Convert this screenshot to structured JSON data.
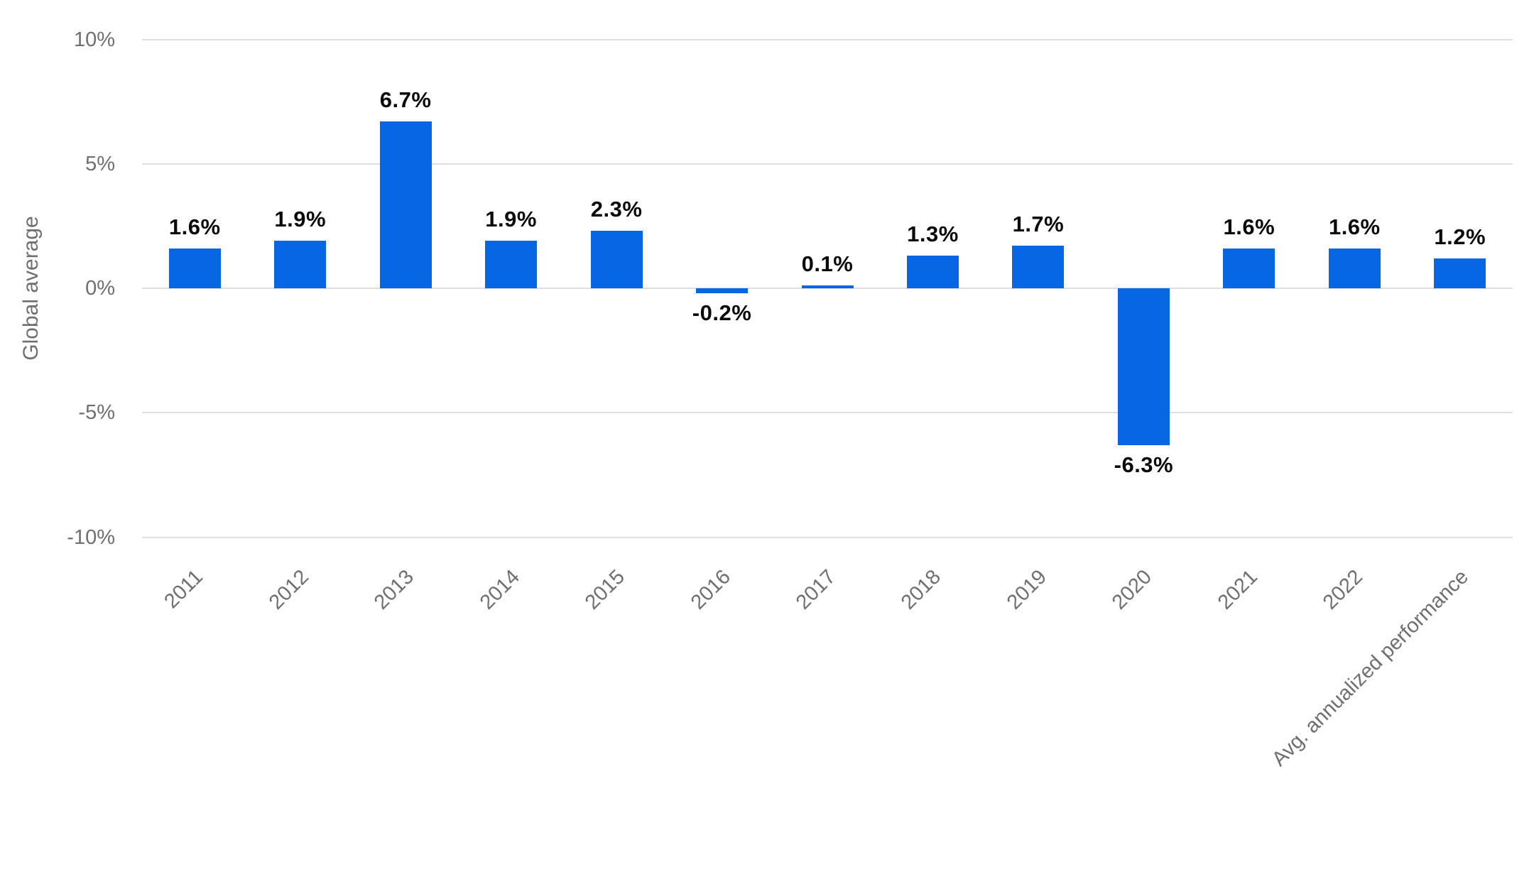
{
  "chart_data": {
    "type": "bar",
    "title": "",
    "xlabel": "",
    "ylabel": "Global average",
    "categories": [
      "2011",
      "2012",
      "2013",
      "2014",
      "2015",
      "2016",
      "2017",
      "2018",
      "2019",
      "2020",
      "2021",
      "2022",
      "Avg. annualized performance"
    ],
    "values": [
      1.6,
      1.9,
      6.7,
      1.9,
      2.3,
      -0.2,
      0.1,
      1.3,
      1.7,
      -6.3,
      1.6,
      1.6,
      1.2
    ],
    "value_labels": [
      "1.6%",
      "1.9%",
      "6.7%",
      "1.9%",
      "2.3%",
      "-0.2%",
      "0.1%",
      "1.3%",
      "1.7%",
      "-6.3%",
      "1.6%",
      "1.6%",
      "1.2%"
    ],
    "y_ticks": [
      {
        "value": 10,
        "label": "10%"
      },
      {
        "value": 5,
        "label": "5%"
      },
      {
        "value": 0,
        "label": "0%"
      },
      {
        "value": -5,
        "label": "-5%"
      },
      {
        "value": -10,
        "label": "-10%"
      }
    ],
    "ylim": [
      -10,
      10
    ],
    "grid": true,
    "legend": "none",
    "colors": {
      "bar": "#0666e3",
      "grid": "#dedede",
      "axis_text": "#6f6f6f",
      "value_text": "#0a0a0a"
    }
  }
}
